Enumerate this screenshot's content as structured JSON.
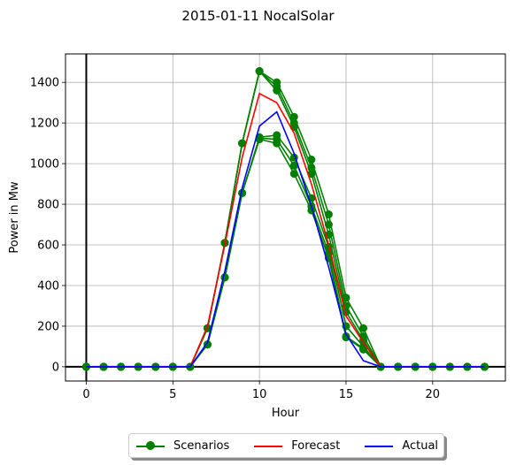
{
  "chart_data": {
    "type": "line",
    "title": "2015-01-11 NocalSolar",
    "xlabel": "Hour",
    "ylabel": "Power in Mw",
    "xlim": [
      -1.2,
      24.2
    ],
    "ylim": [
      -70,
      1540
    ],
    "xticks": [
      0,
      5,
      10,
      15,
      20
    ],
    "yticks": [
      0,
      200,
      400,
      600,
      800,
      1000,
      1200,
      1400
    ],
    "grid": true,
    "legend_position": "bottom-center",
    "x": [
      0,
      1,
      2,
      3,
      4,
      5,
      6,
      7,
      8,
      9,
      10,
      11,
      12,
      13,
      14,
      15,
      16,
      17,
      18,
      19,
      20,
      21,
      22,
      23
    ],
    "series": [
      {
        "name": "Scenarios",
        "color": "#008000",
        "marker": "circle",
        "values": [
          0,
          0,
          0,
          0,
          0,
          0,
          0,
          190,
          610,
          1100,
          1455,
          1400,
          1230,
          1020,
          750,
          340,
          190,
          0,
          0,
          0,
          0,
          0,
          0,
          0
        ]
      },
      {
        "name": "",
        "color": "#008000",
        "marker": "circle",
        "values": [
          0,
          0,
          0,
          0,
          0,
          0,
          0,
          190,
          610,
          1100,
          1455,
          1380,
          1200,
          980,
          700,
          300,
          150,
          0,
          0,
          0,
          0,
          0,
          0,
          0
        ]
      },
      {
        "name": "",
        "color": "#008000",
        "marker": "circle",
        "values": [
          0,
          0,
          0,
          0,
          0,
          0,
          0,
          190,
          610,
          1100,
          1455,
          1360,
          1180,
          950,
          650,
          270,
          130,
          0,
          0,
          0,
          0,
          0,
          0,
          0
        ]
      },
      {
        "name": "",
        "color": "#008000",
        "marker": "circle",
        "values": [
          0,
          0,
          0,
          0,
          0,
          0,
          0,
          110,
          440,
          855,
          1130,
          1140,
          1030,
          830,
          590,
          200,
          100,
          0,
          0,
          0,
          0,
          0,
          0,
          0
        ]
      },
      {
        "name": "",
        "color": "#008000",
        "marker": "circle",
        "values": [
          0,
          0,
          0,
          0,
          0,
          0,
          0,
          110,
          440,
          855,
          1125,
          1120,
          990,
          790,
          560,
          150,
          90,
          0,
          0,
          0,
          0,
          0,
          0,
          0
        ]
      },
      {
        "name": "",
        "color": "#008000",
        "marker": "circle",
        "values": [
          0,
          0,
          0,
          0,
          0,
          0,
          0,
          110,
          440,
          855,
          1120,
          1100,
          950,
          770,
          535,
          145,
          85,
          0,
          0,
          0,
          0,
          0,
          0,
          0
        ]
      },
      {
        "name": "Forecast",
        "color": "#ff0000",
        "marker": "none",
        "values": [
          0,
          0,
          0,
          0,
          0,
          0,
          0,
          200,
          600,
          1030,
          1345,
          1300,
          1150,
          900,
          600,
          250,
          120,
          0,
          0,
          0,
          0,
          0,
          0,
          0
        ]
      },
      {
        "name": "Actual",
        "color": "#0000ff",
        "marker": "none",
        "values": [
          0,
          0,
          0,
          0,
          0,
          0,
          0,
          120,
          470,
          880,
          1185,
          1255,
          1050,
          790,
          490,
          160,
          30,
          0,
          0,
          0,
          0,
          0,
          0,
          0
        ]
      }
    ],
    "legend": [
      {
        "label": "Scenarios",
        "color": "#008000",
        "marker": true
      },
      {
        "label": "Forecast",
        "color": "#ff0000",
        "marker": false
      },
      {
        "label": "Actual",
        "color": "#0000ff",
        "marker": false
      }
    ]
  }
}
